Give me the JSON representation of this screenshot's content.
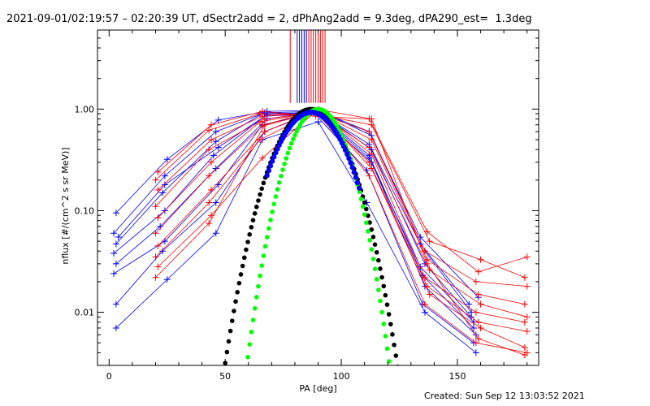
{
  "title": "2021-09-01/02:19:57 – 02:20:39 UT, dSectr2add = 2, dPhAng2add = 9.3deg, dPA290_est=  1.3deg",
  "footer": "Created: Sun Sep 12 13:03:52 2021",
  "colors": {
    "red": "#ff0000",
    "blue": "#0000ff",
    "black": "#000000",
    "green": "#00ff00"
  },
  "chart_data": {
    "type": "line",
    "xlabel": "PA [deg]",
    "ylabel": "nflux [#/(cm^2 s sr MeV)]",
    "xlim": [
      -5,
      185
    ],
    "ylim": [
      0.003,
      6
    ],
    "yscale": "log",
    "grid": false,
    "x_ticks": [
      0,
      50,
      100,
      150
    ],
    "x_tick_labels": [
      "0",
      "50",
      "100",
      "150"
    ],
    "y_ticks": [
      0.01,
      0.1,
      1.0
    ],
    "y_tick_labels": [
      "0.01",
      "0.10",
      "1.00"
    ],
    "vertical_markers": {
      "red": [
        78,
        86,
        87,
        88,
        89,
        90,
        91,
        92,
        93
      ],
      "blue": [
        81,
        82,
        83,
        84,
        85
      ]
    },
    "series": [
      {
        "color": "blue",
        "x": [
          3,
          25,
          47,
          68,
          89,
          112,
          134,
          155
        ],
        "y": [
          0.095,
          0.32,
          0.78,
          0.95,
          0.97,
          0.45,
          0.047,
          0.012
        ]
      },
      {
        "color": "blue",
        "x": [
          2,
          24,
          46,
          67,
          90,
          113,
          136,
          156
        ],
        "y": [
          0.06,
          0.22,
          0.6,
          0.92,
          0.95,
          0.4,
          0.03,
          0.009
        ]
      },
      {
        "color": "blue",
        "x": [
          3,
          23,
          46,
          66,
          90,
          112,
          135,
          157
        ],
        "y": [
          0.047,
          0.15,
          0.48,
          0.9,
          0.92,
          0.35,
          0.023,
          0.007
        ]
      },
      {
        "color": "blue",
        "x": [
          2,
          24,
          45,
          67,
          89,
          113,
          136,
          158
        ],
        "y": [
          0.038,
          0.1,
          0.35,
          0.85,
          0.9,
          0.3,
          0.018,
          0.006
        ]
      },
      {
        "color": "blue",
        "x": [
          3,
          22,
          46,
          68,
          88,
          111,
          135,
          157
        ],
        "y": [
          0.03,
          0.07,
          0.26,
          0.8,
          0.93,
          0.25,
          0.012,
          0.005
        ]
      },
      {
        "color": "blue",
        "x": [
          2,
          24,
          47,
          66,
          91,
          113,
          136,
          156
        ],
        "y": [
          0.024,
          0.05,
          0.18,
          0.7,
          0.95,
          0.55,
          0.04,
          0.01
        ]
      },
      {
        "color": "blue",
        "x": [
          3,
          23,
          46,
          67,
          90,
          112,
          134,
          159
        ],
        "y": [
          0.012,
          0.04,
          0.12,
          0.6,
          0.96,
          0.6,
          0.055,
          0.014
        ]
      },
      {
        "color": "blue",
        "x": [
          3,
          25,
          46,
          66,
          90,
          111,
          136,
          158
        ],
        "y": [
          0.007,
          0.021,
          0.06,
          0.5,
          0.75,
          0.12,
          0.01,
          0.004
        ]
      },
      {
        "color": "blue",
        "x": [
          4,
          24,
          47,
          68,
          89,
          112,
          134,
          157
        ],
        "y": [
          0.055,
          0.18,
          0.42,
          0.88,
          0.94,
          0.33,
          0.028,
          0.008
        ]
      },
      {
        "color": "red",
        "x": [
          21,
          44,
          66,
          89,
          112,
          137,
          159,
          180
        ],
        "y": [
          0.24,
          0.7,
          0.95,
          0.85,
          0.8,
          0.062,
          0.025,
          0.035
        ]
      },
      {
        "color": "red",
        "x": [
          20,
          43,
          65,
          90,
          113,
          138,
          160,
          179
        ],
        "y": [
          0.2,
          0.62,
          0.9,
          0.88,
          0.7,
          0.05,
          0.033,
          0.022
        ]
      },
      {
        "color": "red",
        "x": [
          21,
          44,
          66,
          89,
          112,
          136,
          158,
          180
        ],
        "y": [
          0.16,
          0.5,
          0.85,
          0.92,
          0.6,
          0.04,
          0.02,
          0.018
        ]
      },
      {
        "color": "red",
        "x": [
          20,
          43,
          67,
          90,
          113,
          137,
          159,
          179
        ],
        "y": [
          0.11,
          0.4,
          0.8,
          0.93,
          0.5,
          0.033,
          0.015,
          0.012
        ]
      },
      {
        "color": "red",
        "x": [
          21,
          44,
          65,
          89,
          112,
          138,
          160,
          180
        ],
        "y": [
          0.085,
          0.3,
          0.75,
          0.94,
          0.42,
          0.026,
          0.012,
          0.009
        ]
      },
      {
        "color": "red",
        "x": [
          20,
          43,
          66,
          90,
          113,
          136,
          158,
          179
        ],
        "y": [
          0.06,
          0.22,
          0.68,
          0.95,
          0.36,
          0.022,
          0.01,
          0.008
        ]
      },
      {
        "color": "red",
        "x": [
          21,
          44,
          67,
          89,
          112,
          137,
          159,
          180
        ],
        "y": [
          0.045,
          0.16,
          0.6,
          0.96,
          0.3,
          0.018,
          0.008,
          0.0065
        ]
      },
      {
        "color": "red",
        "x": [
          20,
          43,
          65,
          90,
          113,
          138,
          160,
          179
        ],
        "y": [
          0.035,
          0.12,
          0.5,
          0.97,
          0.26,
          0.015,
          0.007,
          0.0045
        ]
      },
      {
        "color": "red",
        "x": [
          21,
          44,
          66,
          89,
          112,
          136,
          158,
          180
        ],
        "y": [
          0.028,
          0.09,
          0.33,
          0.95,
          0.22,
          0.012,
          0.005,
          0.004
        ]
      },
      {
        "color": "red",
        "x": [
          20,
          43,
          67,
          90,
          113,
          137,
          159,
          179
        ],
        "y": [
          0.022,
          0.075,
          0.7,
          0.99,
          0.8,
          0.03,
          0.0055,
          0.0038
        ]
      }
    ],
    "curves": [
      {
        "color": "black",
        "x_range": [
          20,
          152
        ],
        "peak": 1.0,
        "center": 87,
        "exponent": 8
      },
      {
        "color": "green",
        "x_range": [
          20,
          149
        ],
        "peak": 1.0,
        "center": 90,
        "exponent": 12
      },
      {
        "color": "blue",
        "x_range": [
          68,
          108
        ],
        "peak": 0.93,
        "center": 87,
        "exponent": 8
      }
    ]
  }
}
